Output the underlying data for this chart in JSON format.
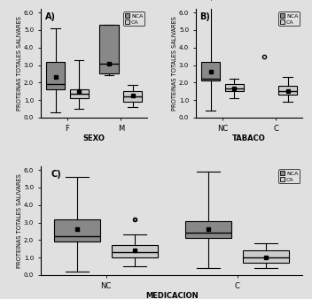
{
  "title_A": "A)",
  "title_B": "B)",
  "title_C": "C)",
  "ylabel": "PROTEINAS TOTALES SALIVARES",
  "xlabel_A": "SEXO",
  "xlabel_B": "TABACO",
  "xlabel_C": "MEDICACION",
  "ylim": [
    0.0,
    6.2
  ],
  "yticks": [
    0.0,
    1.0,
    2.0,
    3.0,
    4.0,
    5.0,
    6.0
  ],
  "color_NCA": "#888888",
  "color_CA": "#cccccc",
  "panel_A": {
    "xtick_labels": [
      "F",
      "M"
    ],
    "groups": [
      {
        "label": "F",
        "NCA": {
          "whislo": 0.3,
          "q1": 1.6,
          "med": 1.9,
          "q3": 3.2,
          "whishi": 5.1,
          "mean": 2.3,
          "fliers": []
        },
        "CA": {
          "whislo": 0.5,
          "q1": 1.1,
          "med": 1.35,
          "q3": 1.6,
          "whishi": 3.3,
          "mean": 1.5,
          "fliers": []
        }
      },
      {
        "label": "M",
        "NCA": {
          "whislo": 2.4,
          "q1": 2.5,
          "med": 3.1,
          "q3": 5.3,
          "whishi": 5.3,
          "mean": 3.1,
          "fliers": []
        },
        "CA": {
          "whislo": 0.6,
          "q1": 0.9,
          "med": 1.2,
          "q3": 1.5,
          "whishi": 1.85,
          "mean": 1.25,
          "fliers": []
        }
      }
    ]
  },
  "panel_B": {
    "xtick_labels": [
      "NC",
      "C"
    ],
    "groups": [
      {
        "label": "NC",
        "NCA": {
          "whislo": 0.4,
          "q1": 2.1,
          "med": 2.2,
          "q3": 3.2,
          "whishi": 6.35,
          "mean": 2.6,
          "fliers": []
        },
        "CA": {
          "whislo": 1.1,
          "q1": 1.5,
          "med": 1.65,
          "q3": 1.9,
          "whishi": 2.2,
          "mean": 1.65,
          "fliers": []
        }
      },
      {
        "label": "C",
        "NCA": {
          "whislo": 0.0,
          "q1": 0.0,
          "med": 0.0,
          "q3": 0.0,
          "whishi": 0.0,
          "mean": 0.0,
          "fliers": [
            3.5
          ]
        },
        "CA": {
          "whislo": 0.9,
          "q1": 1.3,
          "med": 1.5,
          "q3": 1.8,
          "whishi": 2.3,
          "mean": 1.5,
          "fliers": []
        }
      }
    ]
  },
  "panel_C": {
    "xtick_labels": [
      "NC",
      "C"
    ],
    "groups": [
      {
        "label": "NC",
        "NCA": {
          "whislo": 0.2,
          "q1": 1.9,
          "med": 2.2,
          "q3": 3.2,
          "whishi": 5.6,
          "mean": 2.6,
          "fliers": []
        },
        "CA": {
          "whislo": 0.5,
          "q1": 1.0,
          "med": 1.3,
          "q3": 1.7,
          "whishi": 2.3,
          "mean": 1.4,
          "fliers": [
            3.2
          ]
        }
      },
      {
        "label": "C",
        "NCA": {
          "whislo": 0.4,
          "q1": 2.1,
          "med": 2.4,
          "q3": 3.1,
          "whishi": 5.9,
          "mean": 2.6,
          "fliers": []
        },
        "CA": {
          "whislo": 0.4,
          "q1": 0.7,
          "med": 1.0,
          "q3": 1.4,
          "whishi": 1.8,
          "mean": 1.0,
          "fliers": []
        }
      }
    ]
  },
  "bg_color": "#e0e0e0"
}
